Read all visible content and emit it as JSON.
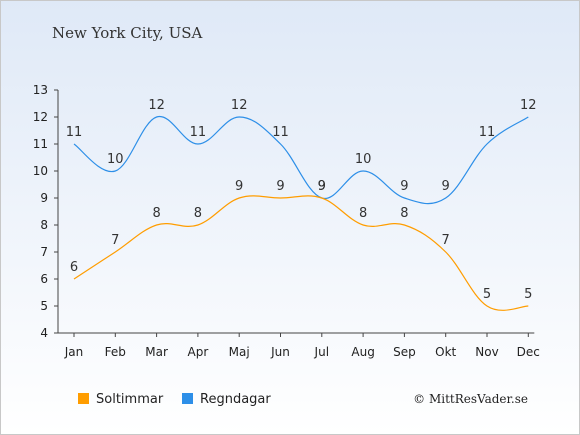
{
  "chart_data": {
    "type": "line",
    "title": "New York City, USA",
    "categories": [
      "Jan",
      "Feb",
      "Mar",
      "Apr",
      "Maj",
      "Jun",
      "Jul",
      "Aug",
      "Sep",
      "Okt",
      "Nov",
      "Dec"
    ],
    "ylim": [
      4,
      13
    ],
    "yticks": [
      4,
      5,
      6,
      7,
      8,
      9,
      10,
      11,
      12,
      13
    ],
    "grid": false,
    "legend_position": "bottom-left",
    "series": [
      {
        "name": "Soltimmar",
        "color": "#ff9d00",
        "values": [
          6,
          7,
          8,
          8,
          9,
          9,
          9,
          8,
          8,
          7,
          5,
          5
        ]
      },
      {
        "name": "Regndagar",
        "color": "#2d8fe8",
        "values": [
          11,
          10,
          12,
          11,
          12,
          11,
          9,
          10,
          9,
          9,
          11,
          12
        ]
      }
    ],
    "credit": "© MittResVader.se"
  }
}
